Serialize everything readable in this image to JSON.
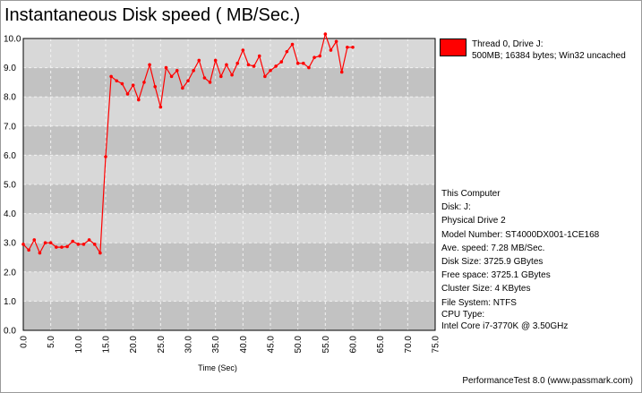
{
  "chart_data": {
    "type": "line",
    "title": "Instantaneous Disk speed ( MB/Sec.)",
    "xlabel": "Time (Sec)",
    "ylabel": "",
    "xlim": [
      0,
      75
    ],
    "ylim": [
      0,
      10
    ],
    "x_ticks": [
      "0.0",
      "5.0",
      "10.0",
      "15.0",
      "20.0",
      "25.0",
      "30.0",
      "35.0",
      "40.0",
      "45.0",
      "50.0",
      "55.0",
      "60.0",
      "65.0",
      "70.0",
      "75.0"
    ],
    "y_ticks": [
      "0.0",
      "1.0",
      "2.0",
      "3.0",
      "4.0",
      "5.0",
      "6.0",
      "7.0",
      "8.0",
      "9.0",
      "10.0"
    ],
    "grid": true,
    "legend_position": "top-right",
    "series": [
      {
        "name": "Thread 0, Drive J:",
        "detail": "500MB; 16384 bytes; Win32 uncached",
        "color": "#ff0000",
        "x": [
          0,
          1,
          2,
          3,
          4,
          5,
          6,
          7,
          8,
          9,
          10,
          11,
          12,
          13,
          14,
          15,
          16,
          17,
          18,
          19,
          20,
          21,
          22,
          23,
          24,
          25,
          26,
          27,
          28,
          29,
          30,
          31,
          32,
          33,
          34,
          35,
          36,
          37,
          38,
          39,
          40,
          41,
          42,
          43,
          44,
          45,
          46,
          47,
          48,
          49,
          50,
          51,
          52,
          53,
          54,
          55,
          56,
          57,
          58,
          59,
          60
        ],
        "values": [
          2.95,
          2.75,
          3.1,
          2.65,
          3.0,
          3.0,
          2.85,
          2.85,
          2.87,
          3.05,
          2.95,
          2.95,
          3.1,
          2.95,
          2.65,
          5.95,
          8.7,
          8.55,
          8.45,
          8.1,
          8.4,
          7.9,
          8.5,
          9.1,
          8.35,
          7.65,
          9.0,
          8.7,
          8.9,
          8.3,
          8.55,
          8.9,
          9.25,
          8.65,
          8.5,
          9.25,
          8.7,
          9.1,
          8.75,
          9.15,
          9.6,
          9.1,
          9.05,
          9.4,
          8.7,
          8.9,
          9.05,
          9.2,
          9.55,
          9.8,
          9.15,
          9.15,
          9.0,
          9.35,
          9.4,
          10.15,
          9.6,
          9.9,
          8.85,
          9.7,
          9.7
        ]
      }
    ]
  },
  "legend": {
    "line1": "Thread 0, Drive J:",
    "line2": "500MB; 16384 bytes; Win32 uncached"
  },
  "info": {
    "computer": "This Computer",
    "disk": "Disk: J:",
    "physical_drive": "Physical Drive 2",
    "model": "Model Number: ST4000DX001-1CE168",
    "ave_speed": "Ave. speed: 7.28 MB/Sec.",
    "disk_size": "Disk Size: 3725.9 GBytes",
    "free_space": "Free space: 3725.1 GBytes",
    "cluster_size": "Cluster Size: 4 KBytes",
    "file_system": "File System: NTFS",
    "cpu_type": "CPU Type:",
    "cpu": "Intel Core i7-3770K @ 3.50GHz"
  },
  "footer": "PerformanceTest 8.0 (www.passmark.com)"
}
